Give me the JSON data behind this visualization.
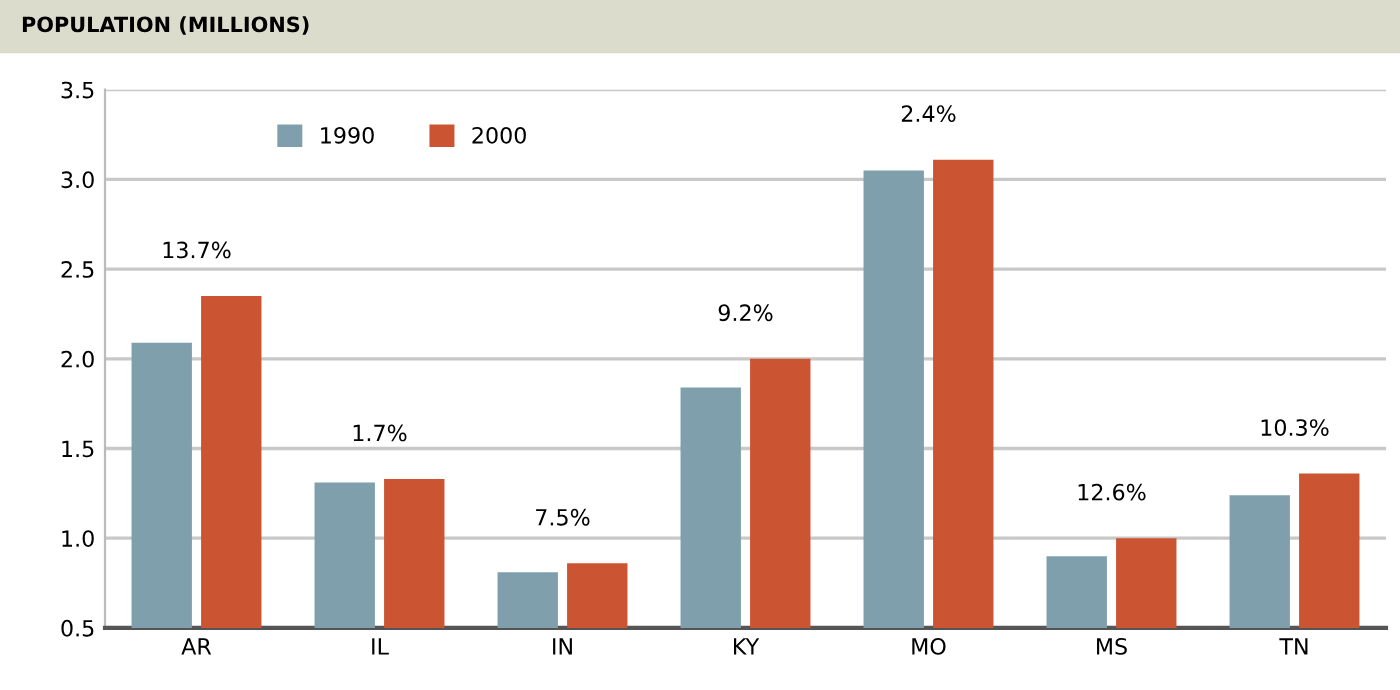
{
  "chart_data": {
    "type": "bar",
    "title": "POPULATION (MILLIONS)",
    "categories": [
      "AR",
      "IL",
      "IN",
      "KY",
      "MO",
      "MS",
      "TN"
    ],
    "series": [
      {
        "name": "1990",
        "color": "#7f9fad",
        "values": [
          2.09,
          1.31,
          0.81,
          1.84,
          3.05,
          0.9,
          1.24
        ]
      },
      {
        "name": "2000",
        "color": "#cb5432",
        "values": [
          2.35,
          1.33,
          0.86,
          2.0,
          3.11,
          1.0,
          1.36
        ]
      }
    ],
    "ylim": [
      0.5,
      3.5
    ],
    "yticks": [
      0.5,
      {
        "value": 1,
        "label": "1.0"
      },
      1.5,
      {
        "value": 2,
        "label": "2.0"
      },
      2.5,
      {
        "value": 3,
        "label": "3.0"
      },
      3.5
    ],
    "grid": "y",
    "legend": "top left",
    "annotations": [
      {
        "text": "13.7%",
        "x": "AR",
        "y": 2.35
      },
      {
        "text": "1.7%",
        "x": "IL",
        "y": 1.33
      },
      {
        "text": "7.5%",
        "x": "IN",
        "y": 0.86
      },
      {
        "text": "9.2%",
        "x": "KY",
        "y": 2.0
      },
      {
        "text": "2.4%",
        "x": "MO",
        "y": 3.11
      },
      {
        "text": "12.6%",
        "x": "MS",
        "y": 1.0
      },
      {
        "text": "10.3%",
        "x": "TN",
        "y": 1.36
      }
    ]
  }
}
